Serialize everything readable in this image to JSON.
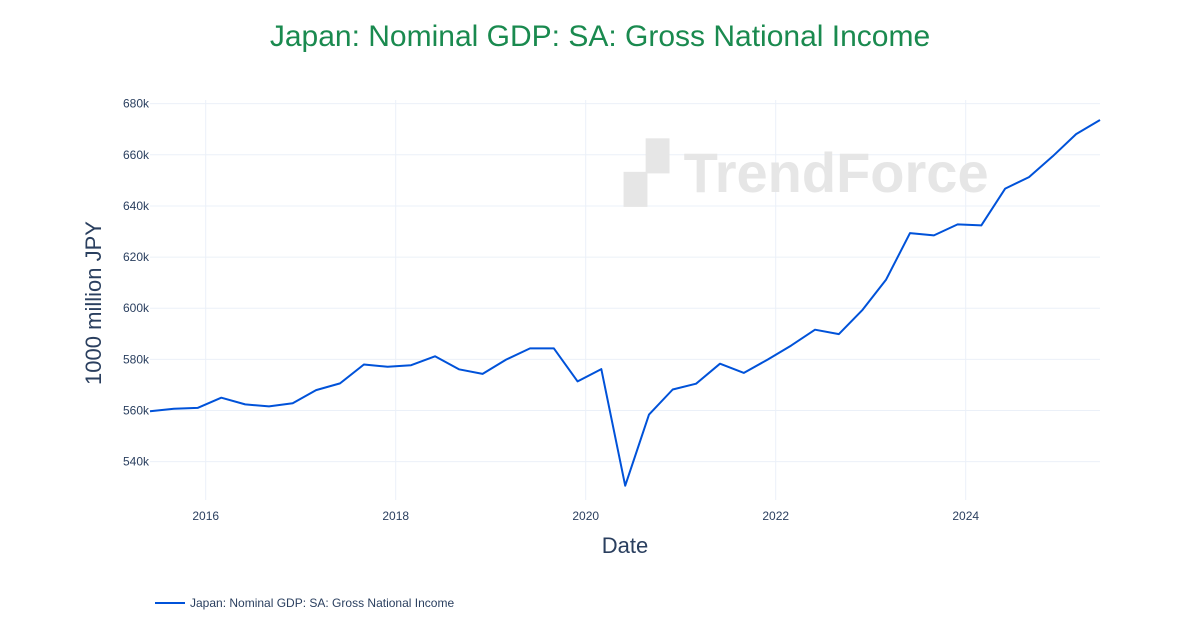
{
  "chart_data": {
    "type": "line",
    "title": "Japan: Nominal GDP: SA: Gross National Income",
    "xlabel": "Date",
    "ylabel": "1000 million JPY",
    "xlim": [
      "2015-06-01",
      "2025-06-01"
    ],
    "ylim": [
      525,
      683
    ],
    "x_ticks": [
      "2016",
      "2018",
      "2020",
      "2022",
      "2024"
    ],
    "y_ticks": [
      540,
      560,
      580,
      600,
      620,
      640,
      660,
      680
    ],
    "y_tick_labels": [
      "540k",
      "560k",
      "580k",
      "600k",
      "620k",
      "640k",
      "660k",
      "680k"
    ],
    "grid": true,
    "legend_position": "bottom-left",
    "watermark": "TrendForce",
    "series": [
      {
        "name": "Japan: Nominal GDP: SA: Gross National Income",
        "color": "#0052d9",
        "x": [
          "2015-06-01",
          "2015-09-01",
          "2015-12-01",
          "2016-03-01",
          "2016-06-01",
          "2016-09-01",
          "2016-12-01",
          "2017-03-01",
          "2017-06-01",
          "2017-09-01",
          "2017-12-01",
          "2018-03-01",
          "2018-06-01",
          "2018-09-01",
          "2018-12-01",
          "2019-03-01",
          "2019-06-01",
          "2019-09-01",
          "2019-12-01",
          "2020-03-01",
          "2020-06-01",
          "2020-09-01",
          "2020-12-01",
          "2021-03-01",
          "2021-06-01",
          "2021-09-01",
          "2021-12-01",
          "2022-03-01",
          "2022-06-01",
          "2022-09-01",
          "2022-12-01",
          "2023-03-01",
          "2023-06-01",
          "2023-09-01",
          "2023-12-01",
          "2024-03-01",
          "2024-06-01",
          "2024-09-01",
          "2024-12-01",
          "2025-03-01",
          "2025-06-01"
        ],
        "values": [
          559.7,
          560.7,
          561.0,
          565.0,
          562.4,
          561.6,
          562.8,
          568.0,
          570.6,
          578.0,
          577.1,
          577.7,
          581.2,
          576.1,
          574.3,
          579.9,
          584.3,
          584.3,
          571.4,
          576.2,
          530.6,
          558.4,
          568.2,
          570.5,
          578.3,
          574.7,
          579.9,
          585.4,
          591.6,
          589.9,
          599.4,
          611.2,
          629.4,
          628.5,
          632.8,
          632.4,
          646.8,
          651.3,
          659.4,
          668.1,
          673.6
        ]
      }
    ]
  }
}
